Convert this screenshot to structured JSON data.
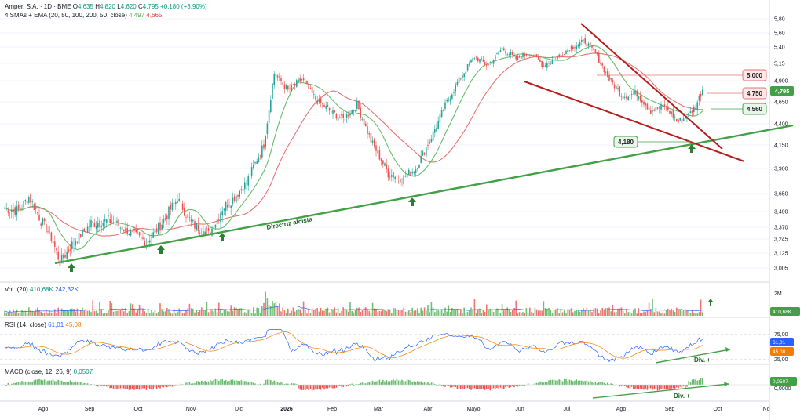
{
  "header": {
    "title": "Amper, S.A. · 1D · BME",
    "o_label": "O",
    "o": "4,635",
    "h_label": "H",
    "h": "4,820",
    "l_label": "L",
    "l": "4,620",
    "c_label": "C",
    "c": "4,795",
    "change": "+0,180 (+3,90%)",
    "ma_label": "4 SMAs + EMA (20, 50, 100, 200, 50, close)",
    "ma1": "4,497",
    "ma2": "4,665",
    "vol_label": "Vol. (20)",
    "vol1": "410,68K",
    "vol2": "242,32K",
    "rsi_label": "RSI (14, close)",
    "rsi1": "61,01",
    "rsi2": "45,08",
    "macd_label": "MACD (close, 12, 26, 9)",
    "macd1": "0,0507"
  },
  "colors": {
    "up": "#26a69a",
    "down": "#ef5350",
    "trend": "#43a047",
    "wedge": "#b71c1c",
    "sma_green": "#66bb6a",
    "ema_red": "#e57373",
    "rsi": "#2962ff",
    "rsi_ma": "#f57c00"
  },
  "chart_data": {
    "type": "candlestick",
    "x_labels": [
      "Ago",
      "Sep",
      "Oct",
      "Nov",
      "Dic",
      "2026",
      "Feb",
      "Mar",
      "Abr",
      "Mayo",
      "Jun",
      "Jul",
      "Ago",
      "Sep",
      "Oct",
      "No"
    ],
    "y_ticks": [
      "5,80",
      "5,60",
      "5,40",
      "5,15",
      "4,900",
      "4,650",
      "4,400",
      "4,150",
      "3,900",
      "3,650",
      "3,490",
      "3,370",
      "3,245",
      "3,125",
      "3,005"
    ],
    "price_path": [
      [
        0,
        3.52
      ],
      [
        8,
        3.5
      ],
      [
        14,
        3.62
      ],
      [
        20,
        3.45
      ],
      [
        26,
        3.3
      ],
      [
        32,
        3.05
      ],
      [
        40,
        3.22
      ],
      [
        50,
        3.4
      ],
      [
        62,
        3.42
      ],
      [
        72,
        3.32
      ],
      [
        82,
        3.22
      ],
      [
        90,
        3.38
      ],
      [
        100,
        3.6
      ],
      [
        108,
        3.4
      ],
      [
        118,
        3.3
      ],
      [
        126,
        3.52
      ],
      [
        132,
        3.6
      ],
      [
        140,
        3.76
      ],
      [
        150,
        4.15
      ],
      [
        156,
        5.0
      ],
      [
        164,
        4.78
      ],
      [
        172,
        4.92
      ],
      [
        180,
        4.68
      ],
      [
        188,
        4.55
      ],
      [
        196,
        4.45
      ],
      [
        204,
        4.62
      ],
      [
        212,
        4.2
      ],
      [
        222,
        3.85
      ],
      [
        230,
        3.8
      ],
      [
        238,
        3.9
      ],
      [
        246,
        4.2
      ],
      [
        256,
        4.65
      ],
      [
        264,
        4.95
      ],
      [
        272,
        5.25
      ],
      [
        280,
        5.12
      ],
      [
        288,
        5.38
      ],
      [
        296,
        5.22
      ],
      [
        304,
        5.32
      ],
      [
        312,
        5.12
      ],
      [
        320,
        5.25
      ],
      [
        328,
        5.4
      ],
      [
        336,
        5.48
      ],
      [
        342,
        5.3
      ],
      [
        350,
        4.92
      ],
      [
        358,
        4.72
      ],
      [
        366,
        4.75
      ],
      [
        374,
        4.55
      ],
      [
        382,
        4.6
      ],
      [
        390,
        4.42
      ],
      [
        396,
        4.5
      ],
      [
        400,
        4.6
      ],
      [
        404,
        4.8
      ]
    ],
    "annotations": {
      "resistance": "5,000",
      "level1": "4,750",
      "support1": "4,560",
      "support2": "4,180",
      "trendline": "Directriz alcista",
      "divergence_rsi": "Div. +",
      "divergence_macd": "Div. +"
    },
    "price_label": "4,795",
    "vol_axis": "2M",
    "vol_last": "410,68K",
    "rsi_ticks": [
      "75,00",
      "25,00"
    ],
    "rsi_last": [
      "61,01",
      "45,08"
    ],
    "macd_ticks": [
      "0,0000"
    ],
    "macd_last": "0,0507"
  }
}
